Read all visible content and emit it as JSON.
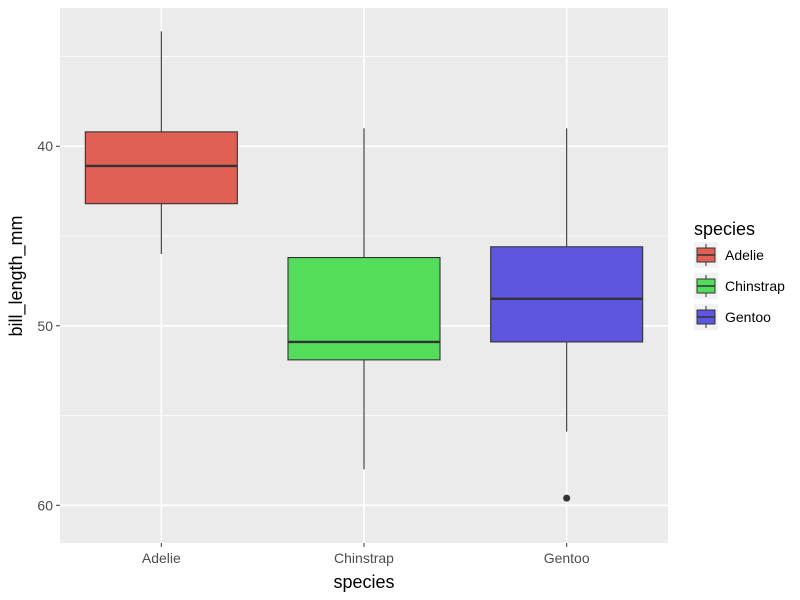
{
  "chart_data": {
    "type": "box",
    "title": "",
    "xlabel": "species",
    "ylabel": "bill_length_mm",
    "y_reversed": true,
    "ylim": [
      32.3,
      62.1
    ],
    "yticks": [
      40,
      50,
      60
    ],
    "ytick_labels": [
      "40",
      "50",
      "60"
    ],
    "y_minor_ticks": [
      35,
      45,
      55
    ],
    "grid": true,
    "categories": [
      "Adelie",
      "Chinstrap",
      "Gentoo"
    ],
    "boxes": [
      {
        "category": "Adelie",
        "whisker_low": 33.6,
        "q1": 39.2,
        "median": 41.1,
        "q3": 43.2,
        "whisker_high": 46.0,
        "outliers": [],
        "color": "#e06055"
      },
      {
        "category": "Chinstrap",
        "whisker_low": 39.0,
        "q1": 46.2,
        "median": 50.9,
        "q3": 51.9,
        "whisker_high": 58.0,
        "outliers": [],
        "color": "#53dd5b"
      },
      {
        "category": "Gentoo",
        "whisker_low": 39.0,
        "q1": 45.6,
        "median": 48.5,
        "q3": 50.9,
        "whisker_high": 55.9,
        "outliers": [
          59.6
        ],
        "color": "#5e55e0"
      }
    ],
    "legend": {
      "title": "species",
      "placement": "right",
      "entries": [
        {
          "label": "Adelie",
          "color": "#e06055"
        },
        {
          "label": "Chinstrap",
          "color": "#53dd5b"
        },
        {
          "label": "Gentoo",
          "color": "#5e55e0"
        }
      ]
    }
  }
}
